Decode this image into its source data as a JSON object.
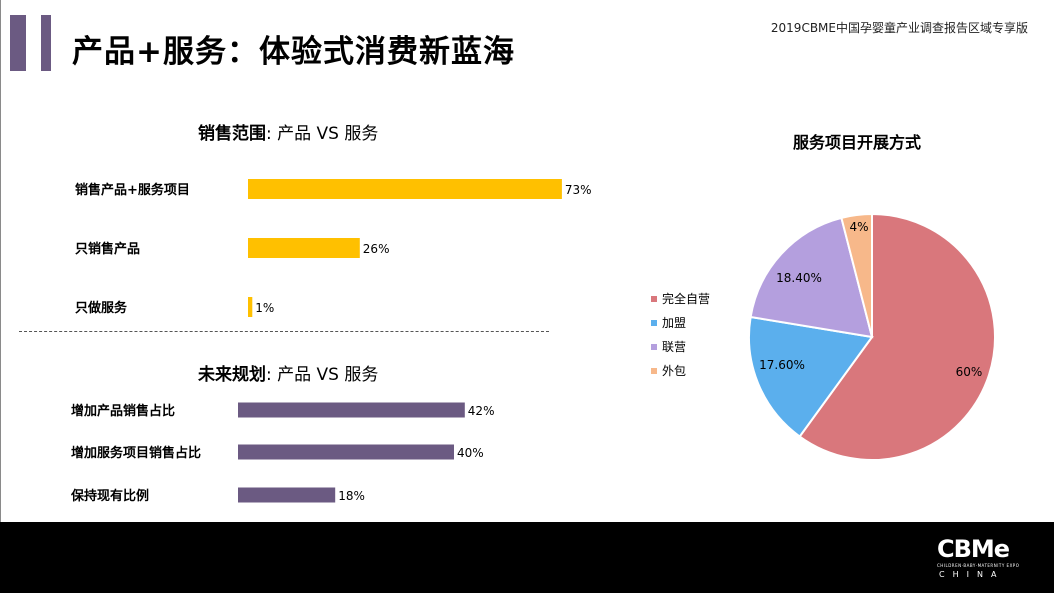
{
  "header": {
    "title": "产品+服务：体验式消费新蓝海",
    "report_tag": "2019CBME中国孕婴童产业调查报告区域专享版"
  },
  "colors": {
    "accent": "#6b5a82",
    "bar_sales": "#ffc000",
    "bar_plan": "#6b5a82"
  },
  "chart_data": [
    {
      "type": "bar",
      "orientation": "horizontal",
      "title_bold": "销售范围",
      "title_rest": ": 产品 VS 服务",
      "categories": [
        "销售产品+服务项目",
        "只销售产品",
        "只做服务"
      ],
      "values": [
        73,
        26,
        1
      ],
      "labels": [
        "73%",
        "26%",
        "1%"
      ],
      "unit": "%",
      "xlim": [
        0,
        100
      ]
    },
    {
      "type": "bar",
      "orientation": "horizontal",
      "title_bold": "未来规划",
      "title_rest": ": 产品 VS 服务",
      "categories": [
        "增加产品销售占比",
        "增加服务项目销售占比",
        "保持现有比例"
      ],
      "values": [
        42,
        40,
        18
      ],
      "labels": [
        "42%",
        "40%",
        "18%"
      ],
      "unit": "%",
      "xlim": [
        0,
        100
      ]
    },
    {
      "type": "pie",
      "title": "服务项目开展方式",
      "slices": [
        {
          "name": "完全自营",
          "value": 60,
          "label": "60%",
          "color": "#d9777c"
        },
        {
          "name": "加盟",
          "value": 17.6,
          "label": "17.60%",
          "color": "#5bafed"
        },
        {
          "name": "联营",
          "value": 18.4,
          "label": "18.40%",
          "color": "#b49fde"
        },
        {
          "name": "外包",
          "value": 4,
          "label": "4%",
          "color": "#f7b88a"
        }
      ],
      "legend_position": "left"
    }
  ],
  "footer": {
    "logo_word": "CBMe",
    "logo_small": "CHILDREN·BABY·MATERNITY EXPO",
    "logo_sub": "CHINA"
  }
}
